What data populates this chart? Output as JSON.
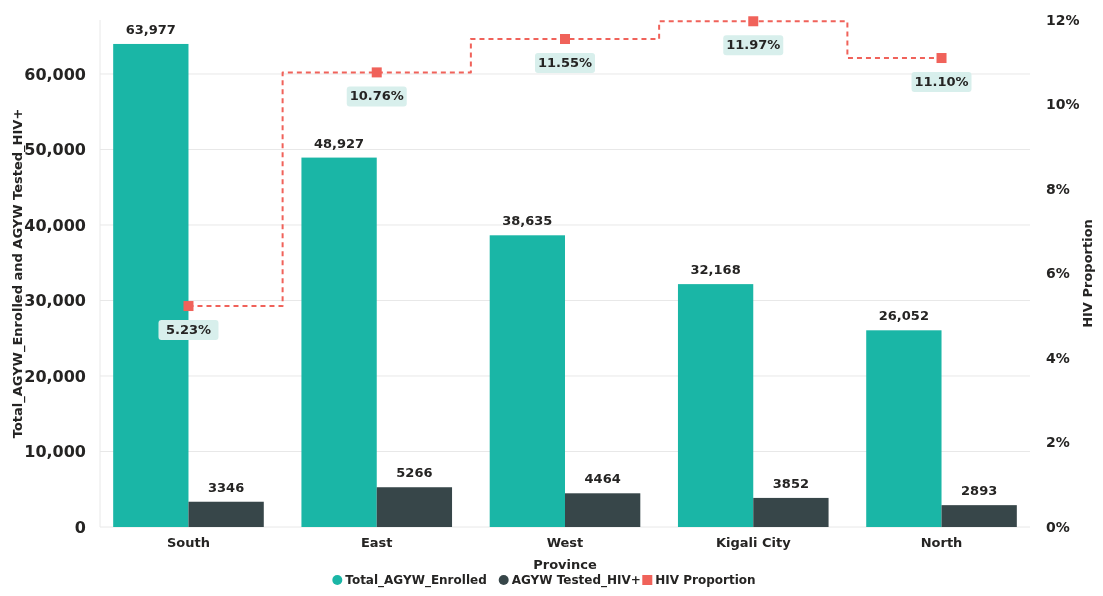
{
  "chart_data": {
    "type": "bar",
    "xlabel": "Province",
    "ylabel": "Total_AGYW_Enrolled and AGYW Tested_HIV+",
    "y2label": "HIV Proportion",
    "categories": [
      "South",
      "East",
      "West",
      "Kigali City",
      "North"
    ],
    "series": [
      {
        "name": "Total_AGYW_Enrolled",
        "color": "#1ab6a6",
        "values": [
          63977,
          48927,
          38635,
          32168,
          26052
        ],
        "value_labels": [
          "63,977",
          "48,927",
          "38,635",
          "32,168",
          "26,052"
        ]
      },
      {
        "name": "AGYW Tested_HIV+",
        "color": "#374649",
        "values": [
          3346,
          5266,
          4464,
          3852,
          2893
        ],
        "value_labels": [
          "3346",
          "5266",
          "4464",
          "3852",
          "2893"
        ]
      },
      {
        "name": "HIV Proportion",
        "type": "step",
        "axis": "y2",
        "color": "#f0625a",
        "marker": "square",
        "line_style": "dashed",
        "values": [
          5.23,
          10.76,
          11.55,
          11.97,
          11.1
        ],
        "value_labels": [
          "5.23%",
          "10.76%",
          "11.55%",
          "11.97%",
          "11.10%"
        ]
      }
    ],
    "ylim": [
      0,
      67150
    ],
    "yticks": [
      {
        "value": 0,
        "label": "0"
      },
      {
        "value": 10000,
        "label": "10,000"
      },
      {
        "value": 20000,
        "label": "20,000"
      },
      {
        "value": 30000,
        "label": "30,000"
      },
      {
        "value": 40000,
        "label": "40,000"
      },
      {
        "value": 50000,
        "label": "50,000"
      },
      {
        "value": 60000,
        "label": "60,000"
      }
    ],
    "y2lim": [
      0,
      12
    ],
    "y2ticks": [
      {
        "value": 0,
        "label": "0%"
      },
      {
        "value": 2,
        "label": "2%"
      },
      {
        "value": 4,
        "label": "4%"
      },
      {
        "value": 6,
        "label": "6%"
      },
      {
        "value": 8,
        "label": "8%"
      },
      {
        "value": 10,
        "label": "10%"
      },
      {
        "value": 12,
        "label": "12%"
      }
    ],
    "grid": "y",
    "legend": "bottom"
  }
}
